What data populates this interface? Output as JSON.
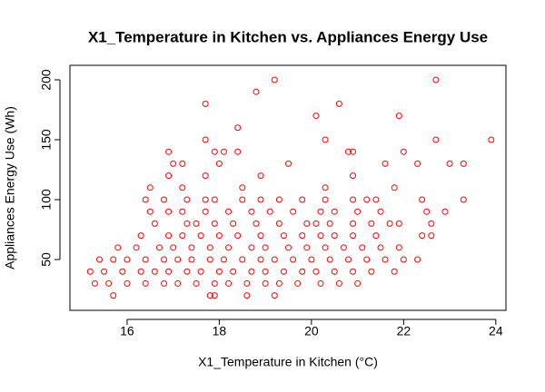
{
  "chart_data": {
    "type": "scatter",
    "title": "X1_Temperature in Kitchen vs. Appliances Energy Use",
    "x_label": "X1_Temperature in Kitchen (°C)",
    "y_label": "Appliances Energy Use (Wh)",
    "color": "#ff0000",
    "xlim": [
      14.76,
      24.22
    ],
    "ylim": [
      7.6,
      212.1
    ],
    "xticks": [
      16,
      18,
      20,
      22,
      24
    ],
    "yticks": [
      50,
      100,
      150,
      200
    ],
    "grid": false,
    "x": [
      19.2,
      22.7,
      18.8,
      17.7,
      20.6,
      20.1,
      21.9,
      18.4,
      17.7,
      20.3,
      22.7,
      23.9,
      16.9,
      17.9,
      18.1,
      18.4,
      20.8,
      20.9,
      22.0,
      17.0,
      17.2,
      18.0,
      19.5,
      21.6,
      22.3,
      23.0,
      23.3,
      17.7,
      18.9,
      20.9,
      16.9,
      16.5,
      17.2,
      18.5,
      20.3,
      21.8,
      16.4,
      16.8,
      17.3,
      17.7,
      17.9,
      18.5,
      18.9,
      19.3,
      19.8,
      20.3,
      20.9,
      21.2,
      21.4,
      22.4,
      23.3,
      16.5,
      16.9,
      17.2,
      17.7,
      18.2,
      18.7,
      19.1,
      19.6,
      20.2,
      20.5,
      21.0,
      21.5,
      22.5,
      22.9,
      16.6,
      17.3,
      17.5,
      17.9,
      18.3,
      18.8,
      19.3,
      19.9,
      20.1,
      20.4,
      20.9,
      21.3,
      21.7,
      21.9,
      22.6,
      16.3,
      16.9,
      17.2,
      17.6,
      18.0,
      18.4,
      18.9,
      19.4,
      19.8,
      20.2,
      20.5,
      20.9,
      21.4,
      22.4,
      22.6,
      15.8,
      16.2,
      16.7,
      17.0,
      17.4,
      17.8,
      18.2,
      18.7,
      19.0,
      19.5,
      19.9,
      20.3,
      20.7,
      21.1,
      21.5,
      21.9,
      15.4,
      15.7,
      16.0,
      16.4,
      16.8,
      17.1,
      17.4,
      17.8,
      18.1,
      18.5,
      18.9,
      19.2,
      19.6,
      20.0,
      20.4,
      20.8,
      21.2,
      21.6,
      22.0,
      22.3,
      15.2,
      15.5,
      15.9,
      16.3,
      16.6,
      16.9,
      17.3,
      17.6,
      18.0,
      18.3,
      18.7,
      19.0,
      19.4,
      19.8,
      20.1,
      20.5,
      20.9,
      21.3,
      21.8,
      15.3,
      15.6,
      16.0,
      16.4,
      16.8,
      17.1,
      17.5,
      17.9,
      18.2,
      18.6,
      19.0,
      19.3,
      19.7,
      20.2,
      20.6,
      21.0,
      15.7,
      17.8,
      17.9,
      18.6,
      19.2
    ],
    "values": [
      200,
      200,
      190,
      180,
      180,
      170,
      170,
      160,
      150,
      150,
      150,
      150,
      140,
      140,
      140,
      140,
      140,
      140,
      140,
      130,
      130,
      130,
      130,
      130,
      130,
      130,
      130,
      120,
      120,
      120,
      120,
      110,
      110,
      110,
      110,
      110,
      100,
      100,
      100,
      100,
      100,
      100,
      100,
      100,
      100,
      100,
      100,
      100,
      100,
      100,
      100,
      90,
      90,
      90,
      90,
      90,
      90,
      90,
      90,
      90,
      90,
      90,
      90,
      90,
      90,
      80,
      80,
      80,
      80,
      80,
      80,
      80,
      80,
      80,
      80,
      80,
      80,
      80,
      80,
      80,
      70,
      70,
      70,
      70,
      70,
      70,
      70,
      70,
      70,
      70,
      70,
      70,
      70,
      70,
      70,
      60,
      60,
      60,
      60,
      60,
      60,
      60,
      60,
      60,
      60,
      60,
      60,
      60,
      60,
      60,
      60,
      50,
      50,
      50,
      50,
      50,
      50,
      50,
      50,
      50,
      50,
      50,
      50,
      50,
      50,
      50,
      50,
      50,
      50,
      50,
      50,
      40,
      40,
      40,
      40,
      40,
      40,
      40,
      40,
      40,
      40,
      40,
      40,
      40,
      40,
      40,
      40,
      40,
      40,
      40,
      30,
      30,
      30,
      30,
      30,
      30,
      30,
      30,
      30,
      30,
      30,
      30,
      30,
      30,
      30,
      30,
      20,
      20,
      20,
      20,
      20
    ]
  }
}
